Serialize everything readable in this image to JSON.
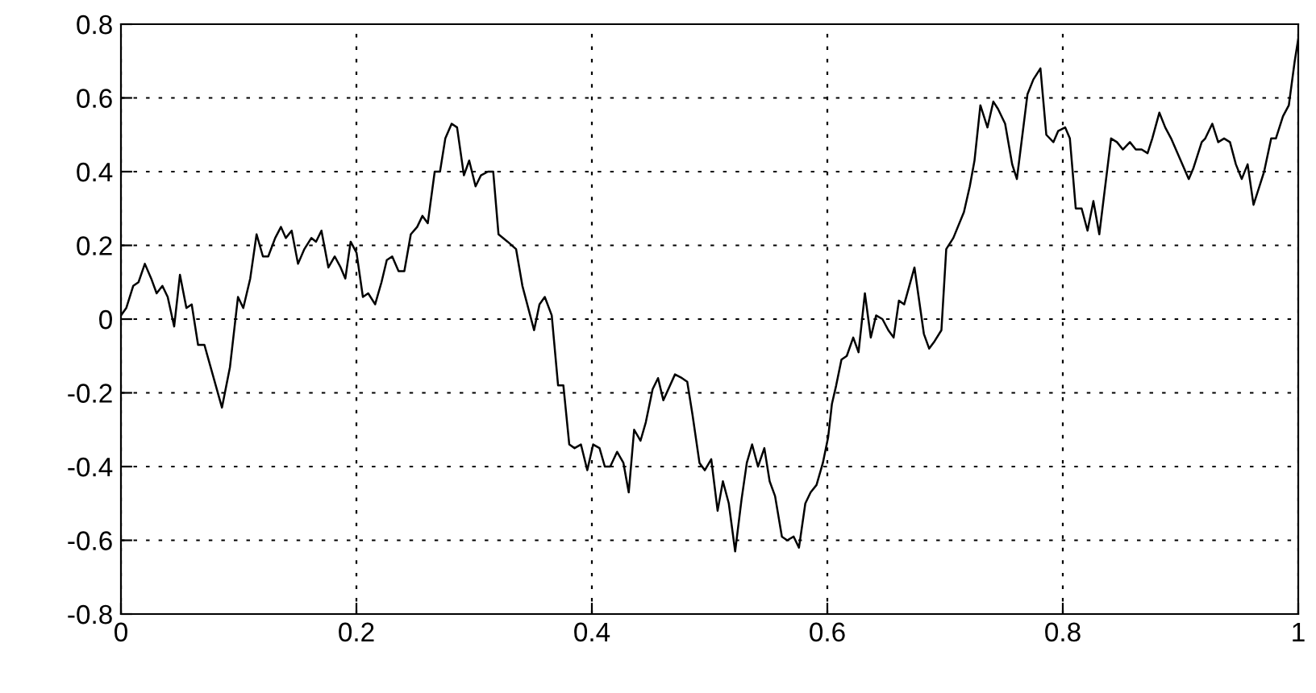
{
  "chart_data": {
    "type": "line",
    "x": [
      0.0,
      0.0045,
      0.0104,
      0.0149,
      0.0203,
      0.0257,
      0.0303,
      0.0352,
      0.0397,
      0.0452,
      0.0501,
      0.0556,
      0.0601,
      0.0655,
      0.0709,
      0.0858,
      0.0926,
      0.0994,
      0.1039,
      0.1098,
      0.1152,
      0.1206,
      0.1251,
      0.131,
      0.1359,
      0.14,
      0.145,
      0.1504,
      0.1558,
      0.1617,
      0.1657,
      0.1703,
      0.1762,
      0.1816,
      0.1866,
      0.1906,
      0.1951,
      0.2001,
      0.2055,
      0.21,
      0.2159,
      0.2213,
      0.2258,
      0.2304,
      0.2358,
      0.2407,
      0.2462,
      0.2516,
      0.2561,
      0.2606,
      0.2665,
      0.271,
      0.2755,
      0.2809,
      0.2855,
      0.2913,
      0.2958,
      0.3012,
      0.3058,
      0.3117,
      0.3162,
      0.3207,
      0.3284,
      0.3356,
      0.341,
      0.3509,
      0.3555,
      0.36,
      0.3659,
      0.3713,
      0.3758,
      0.3808,
      0.3853,
      0.3907,
      0.3961,
      0.4011,
      0.4065,
      0.411,
      0.4156,
      0.4214,
      0.4268,
      0.4313,
      0.4359,
      0.4413,
      0.4458,
      0.4516,
      0.4562,
      0.4607,
      0.4706,
      0.4765,
      0.481,
      0.4855,
      0.4914,
      0.4959,
      0.5014,
      0.5068,
      0.5113,
      0.5163,
      0.5217,
      0.5271,
      0.5316,
      0.5361,
      0.5411,
      0.5465,
      0.551,
      0.5556,
      0.5614,
      0.5659,
      0.5714,
      0.5759,
      0.5813,
      0.5858,
      0.5908,
      0.5962,
      0.6007,
      0.6039,
      0.6075,
      0.612,
      0.6165,
      0.622,
      0.6265,
      0.6319,
      0.6369,
      0.6414,
      0.6468,
      0.6518,
      0.6563,
      0.6608,
      0.6653,
      0.674,
      0.682,
      0.6865,
      0.6911,
      0.6969,
      0.701,
      0.707,
      0.716,
      0.721,
      0.725,
      0.73,
      0.736,
      0.741,
      0.745,
      0.751,
      0.757,
      0.761,
      0.77,
      0.775,
      0.781,
      0.786,
      0.792,
      0.796,
      0.802,
      0.806,
      0.811,
      0.816,
      0.821,
      0.826,
      0.831,
      0.841,
      0.846,
      0.851,
      0.857,
      0.862,
      0.867,
      0.872,
      0.876,
      0.882,
      0.887,
      0.892,
      0.907,
      0.911,
      0.918,
      0.921,
      0.927,
      0.932,
      0.937,
      0.942,
      0.947,
      0.952,
      0.957,
      0.962,
      0.967,
      0.971,
      0.977,
      0.981,
      0.987,
      0.992,
      0.997,
      1.0
    ],
    "series": [
      {
        "color": "#000000",
        "values": [
          0.01,
          0.03,
          0.09,
          0.1,
          0.15,
          0.11,
          0.07,
          0.09,
          0.06,
          -0.02,
          0.12,
          0.03,
          0.04,
          -0.07,
          -0.07,
          -0.24,
          -0.13,
          0.06,
          0.03,
          0.11,
          0.23,
          0.17,
          0.17,
          0.22,
          0.25,
          0.22,
          0.24,
          0.15,
          0.19,
          0.22,
          0.21,
          0.24,
          0.14,
          0.17,
          0.14,
          0.11,
          0.21,
          0.18,
          0.06,
          0.07,
          0.04,
          0.1,
          0.16,
          0.17,
          0.13,
          0.13,
          0.23,
          0.25,
          0.28,
          0.26,
          0.4,
          0.4,
          0.49,
          0.53,
          0.52,
          0.39,
          0.43,
          0.36,
          0.39,
          0.4,
          0.4,
          0.23,
          0.21,
          0.19,
          0.09,
          -0.03,
          0.04,
          0.06,
          0.01,
          -0.18,
          -0.18,
          -0.34,
          -0.35,
          -0.34,
          -0.41,
          -0.34,
          -0.35,
          -0.4,
          -0.4,
          -0.36,
          -0.39,
          -0.47,
          -0.3,
          -0.33,
          -0.28,
          -0.19,
          -0.16,
          -0.22,
          -0.15,
          -0.16,
          -0.17,
          -0.26,
          -0.39,
          -0.41,
          -0.38,
          -0.52,
          -0.44,
          -0.5,
          -0.63,
          -0.49,
          -0.39,
          -0.34,
          -0.4,
          -0.35,
          -0.44,
          -0.48,
          -0.59,
          -0.6,
          -0.59,
          -0.62,
          -0.5,
          -0.47,
          -0.45,
          -0.39,
          -0.32,
          -0.23,
          -0.18,
          -0.11,
          -0.1,
          -0.05,
          -0.09,
          0.07,
          -0.05,
          0.01,
          0.0,
          -0.03,
          -0.05,
          0.05,
          0.04,
          0.14,
          -0.04,
          -0.08,
          -0.06,
          -0.03,
          0.19,
          0.22,
          0.29,
          0.36,
          0.43,
          0.58,
          0.52,
          0.59,
          0.57,
          0.53,
          0.42,
          0.38,
          0.61,
          0.65,
          0.68,
          0.5,
          0.48,
          0.51,
          0.52,
          0.49,
          0.3,
          0.3,
          0.24,
          0.32,
          0.23,
          0.49,
          0.48,
          0.46,
          0.48,
          0.46,
          0.46,
          0.45,
          0.49,
          0.56,
          0.52,
          0.49,
          0.38,
          0.41,
          0.48,
          0.49,
          0.53,
          0.48,
          0.49,
          0.48,
          0.42,
          0.38,
          0.42,
          0.31,
          0.36,
          0.4,
          0.49,
          0.49,
          0.55,
          0.58,
          0.7,
          0.76
        ]
      }
    ],
    "xlim": [
      0,
      1
    ],
    "ylim": [
      -0.8,
      0.8
    ],
    "xticks": [
      0,
      0.2,
      0.4,
      0.6,
      0.8,
      1
    ],
    "yticks": [
      0.8,
      0.6,
      0.4,
      0.2,
      0,
      -0.2,
      -0.4,
      -0.6,
      -0.8
    ],
    "grid": true,
    "marker": "none",
    "line_style": "solid"
  }
}
